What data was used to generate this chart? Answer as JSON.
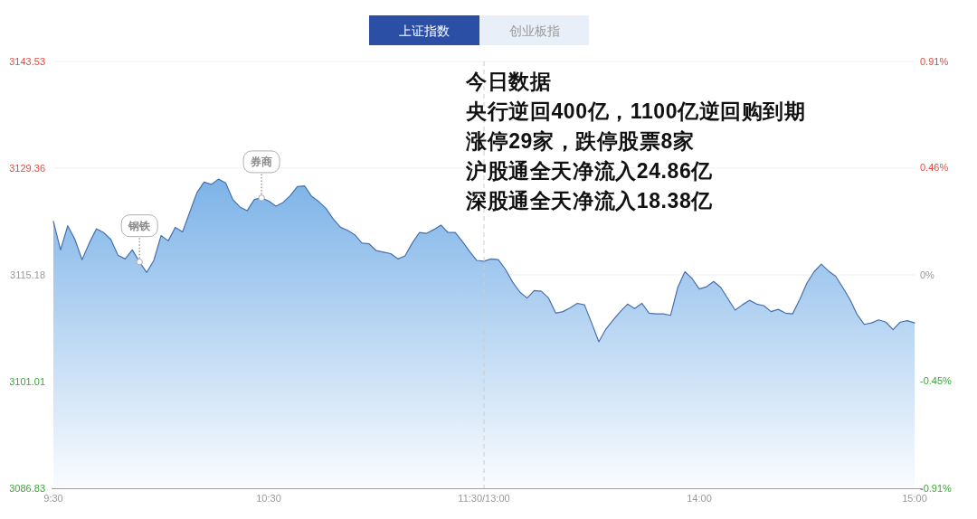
{
  "chart_data": {
    "type": "area",
    "title": "上证指数",
    "annotations": [
      "创业板指",
      "今日数据",
      "央行逆回400亿，1100亿逆回购到期",
      "涨停29家，跌停股票8家",
      "沪股通全天净流入24.86亿",
      "深股通全天净流入18.38亿"
    ],
    "categories": [
      "9:30",
      null,
      null,
      null,
      null,
      null,
      null,
      null,
      null,
      null,
      null,
      null,
      null,
      null,
      null,
      null,
      null,
      null,
      null,
      null,
      null,
      null,
      null,
      null,
      null,
      null,
      null,
      null,
      null,
      null,
      "10:30",
      null,
      null,
      null,
      null,
      null,
      null,
      null,
      null,
      null,
      null,
      null,
      null,
      null,
      null,
      null,
      null,
      null,
      null,
      null,
      null,
      null,
      null,
      null,
      null,
      null,
      null,
      null,
      null,
      null,
      "11:30/13:00",
      null,
      null,
      null,
      null,
      null,
      null,
      null,
      null,
      null,
      null,
      null,
      null,
      null,
      null,
      null,
      null,
      null,
      null,
      null,
      null,
      null,
      null,
      null,
      null,
      null,
      null,
      null,
      null,
      null,
      "14:00",
      null,
      null,
      null,
      null,
      null,
      null,
      null,
      null,
      null,
      null,
      null,
      null,
      null,
      null,
      null,
      null,
      null,
      null,
      null,
      null,
      null,
      null,
      null,
      null,
      null,
      null,
      null,
      null,
      null,
      "15:00"
    ],
    "ylim": [
      3086.83,
      3143.53
    ],
    "yticks": [
      3086.83,
      3101.01,
      3115.18,
      3129.36,
      3143.53
    ],
    "y2lim": [
      -0.91,
      0.91
    ],
    "y2ticks": [
      {
        "value": -0.91,
        "label": "-0.91%"
      },
      {
        "value": -0.45,
        "label": "-0.45%"
      },
      {
        "value": 0,
        "label": "0%"
      },
      {
        "value": 0.46,
        "label": "0.46%"
      },
      {
        "value": 0.91,
        "label": "0.91%"
      }
    ],
    "grid": "y",
    "ref_lines": [
      {
        "axis": "x",
        "value": "11:30/13:00",
        "color": "#cccccc",
        "line_style": "dashed"
      }
    ],
    "series": [
      {
        "color": "#7db3e8",
        "values": [
          3122.3,
          3118.5,
          3121.7,
          3119.9,
          3117.2,
          3119.4,
          3121.3,
          3120.8,
          3119.9,
          3117.8,
          3117.3,
          3118.5,
          3116.9,
          3115.5,
          3117.1,
          3120.4,
          3119.7,
          3121.5,
          3120.9,
          3123.5,
          3126.1,
          3127.5,
          3127.2,
          3127.9,
          3127.4,
          3125.2,
          3124.2,
          3123.7,
          3125.2,
          3125.4,
          3125.0,
          3124.3,
          3124.8,
          3125.7,
          3126.9,
          3127.0,
          3125.6,
          3124.9,
          3124.0,
          3122.6,
          3121.5,
          3121.1,
          3120.5,
          3119.4,
          3119.3,
          3118.4,
          3118.2,
          3118.0,
          3117.3,
          3117.7,
          3119.4,
          3120.8,
          3120.7,
          3121.2,
          3121.8,
          3120.8,
          3120.8,
          3119.6,
          3118.3,
          3117.1,
          3117.0,
          3117.3,
          3117.2,
          3115.9,
          3114.2,
          3112.9,
          3112.1,
          3113.1,
          3113.0,
          3112.1,
          3110.1,
          3110.3,
          3110.8,
          3111.4,
          3111.2,
          3108.8,
          3106.3,
          3108.0,
          3109.2,
          3110.3,
          3111.3,
          3110.7,
          3111.4,
          3110.1,
          3110.0,
          3110.0,
          3109.8,
          3113.5,
          3115.6,
          3114.7,
          3113.3,
          3113.6,
          3114.3,
          3113.5,
          3112.0,
          3110.5,
          3111.2,
          3111.8,
          3111.3,
          3111.1,
          3110.3,
          3110.6,
          3110.1,
          3110.0,
          3111.9,
          3114.1,
          3115.6,
          3116.6,
          3115.7,
          3115.0,
          3113.5,
          3111.9,
          3109.9,
          3108.6,
          3108.8,
          3109.2,
          3108.9,
          3107.9,
          3108.9,
          3109.1,
          3108.8
        ],
        "value_labels": [
          null,
          null,
          null,
          null,
          null,
          null,
          null,
          null,
          null,
          null,
          null,
          null,
          "钢铁",
          null,
          null,
          null,
          null,
          null,
          null,
          null,
          null,
          null,
          null,
          null,
          null,
          null,
          null,
          null,
          null,
          "券商",
          null,
          null,
          null,
          null,
          null,
          null,
          null,
          null,
          null,
          null,
          null,
          null,
          null,
          null,
          null,
          null,
          null,
          null,
          null,
          null,
          null,
          null,
          null,
          null,
          null,
          null,
          null,
          null,
          null,
          null,
          null,
          null,
          null,
          null,
          null,
          null,
          null,
          null,
          null,
          null,
          null,
          null,
          null,
          null,
          null,
          null,
          null,
          null,
          null,
          null,
          null,
          null,
          null,
          null,
          null,
          null,
          null,
          null,
          null,
          null,
          null,
          null,
          null,
          null,
          null,
          null,
          null,
          null,
          null,
          null,
          null,
          null,
          null,
          null,
          null,
          null,
          null,
          null,
          null,
          null,
          null,
          null,
          null,
          null,
          null,
          null,
          null,
          null,
          null,
          null,
          null
        ]
      }
    ]
  }
}
